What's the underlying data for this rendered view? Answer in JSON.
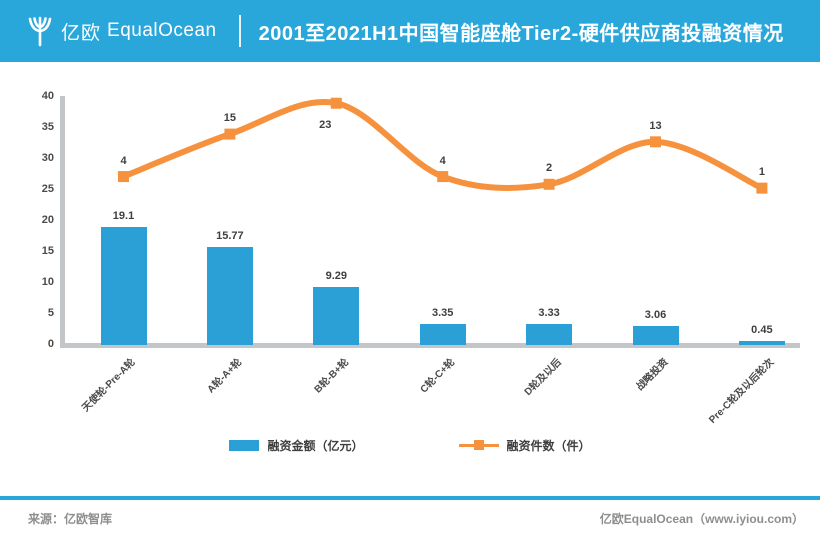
{
  "header": {
    "brand_cn": "亿欧",
    "brand_en": "EqualOcean",
    "title": "2001至2021H1中国智能座舱Tier2-硬件供应商投融资情况"
  },
  "chart_data": {
    "type": "bar",
    "subtype": "bar-line-combo",
    "title": "2001至2021H1中国智能座舱Tier2-硬件供应商投融资情况",
    "categories": [
      "天使轮-Pre-A轮",
      "A轮-A+轮",
      "B轮-B+轮",
      "C轮-C+轮",
      "D轮及以后",
      "战略投资",
      "Pre-C轮及以后轮次"
    ],
    "series": [
      {
        "name": "融资金额（亿元）",
        "chart_type": "bar",
        "color": "#2AA0D6",
        "values": [
          19.1,
          15.77,
          9.29,
          3.35,
          3.33,
          3.06,
          0.45
        ],
        "labels": [
          "19.1",
          "15.77",
          "9.29",
          "3.35",
          "3.33",
          "3.06",
          "0.45"
        ]
      },
      {
        "name": "融资件数（件）",
        "chart_type": "line",
        "color": "#F6923E",
        "values": [
          4,
          15,
          23,
          4,
          2,
          13,
          1
        ],
        "labels": [
          "4",
          "15",
          "23",
          "4",
          "2",
          "13",
          "1"
        ]
      }
    ],
    "y_axis": {
      "min": 0,
      "max": 40,
      "ticks": [
        0,
        5,
        10,
        15,
        20,
        25,
        30,
        35,
        40
      ]
    },
    "secondary_axis_visible": false,
    "grid": false,
    "legend_position": "bottom"
  },
  "legend": {
    "items": [
      {
        "label": "融资金额（亿元）",
        "color": "#2AA0D6",
        "marker": "rect"
      },
      {
        "label": "融资件数（件）",
        "color": "#F6923E",
        "marker": "line-square"
      }
    ]
  },
  "footer": {
    "source": "来源：亿欧智库",
    "credit": "亿欧EqualOcean（www.iyiou.com）"
  }
}
